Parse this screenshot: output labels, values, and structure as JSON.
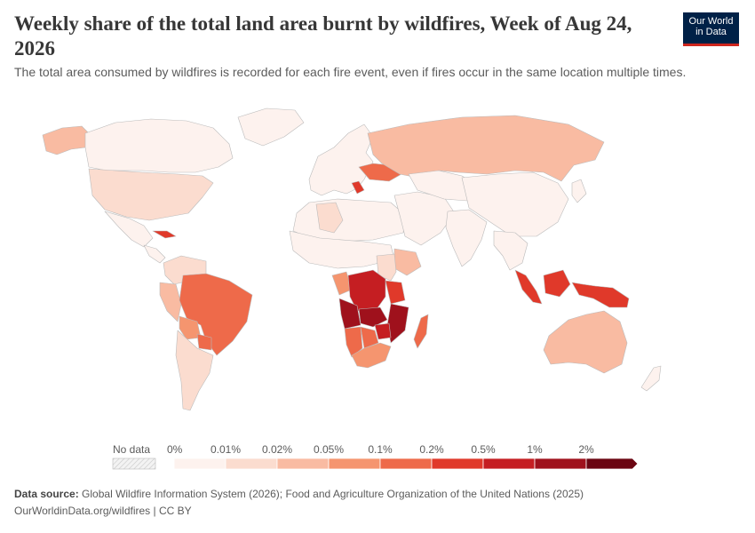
{
  "header": {
    "title": "Weekly share of the total land area burnt by wildfires, Week of Aug 24, 2026",
    "subtitle": "The total area consumed by wildfires is recorded for each fire event, even if fires occur in the same location multiple times."
  },
  "logo": {
    "line1": "Our World",
    "line2": "in Data"
  },
  "legend": {
    "no_data_label": "No data",
    "bins": [
      {
        "label": "0%",
        "color": "#fdf2ee"
      },
      {
        "label": "0.01%",
        "color": "#fbdccf"
      },
      {
        "label": "0.02%",
        "color": "#f9bba2"
      },
      {
        "label": "0.05%",
        "color": "#f5956f"
      },
      {
        "label": "0.1%",
        "color": "#ee6a4a"
      },
      {
        "label": "0.2%",
        "color": "#e0392a"
      },
      {
        "label": "0.5%",
        "color": "#c51e22"
      },
      {
        "label": "1%",
        "color": "#9f111c"
      },
      {
        "label": "2%",
        "color": "#6b0512"
      }
    ]
  },
  "map_regions": [
    {
      "name": "alaska",
      "color": "#f9bba2"
    },
    {
      "name": "canada",
      "color": "#fdf2ee"
    },
    {
      "name": "greenland",
      "color": "#fdf2ee"
    },
    {
      "name": "usa",
      "color": "#fbdccf"
    },
    {
      "name": "mexico",
      "color": "#fdf2ee"
    },
    {
      "name": "central-america",
      "color": "#fdf2ee"
    },
    {
      "name": "cuba",
      "color": "#e0392a"
    },
    {
      "name": "colombia-venezuela",
      "color": "#fbdccf"
    },
    {
      "name": "peru",
      "color": "#f9bba2"
    },
    {
      "name": "brazil",
      "color": "#ee6a4a"
    },
    {
      "name": "bolivia",
      "color": "#f5956f"
    },
    {
      "name": "paraguay",
      "color": "#ee6a4a"
    },
    {
      "name": "argentina-chile",
      "color": "#fbdccf"
    },
    {
      "name": "europe",
      "color": "#fdf2ee"
    },
    {
      "name": "ukraine",
      "color": "#ee6a4a"
    },
    {
      "name": "balkans",
      "color": "#e0392a"
    },
    {
      "name": "russia",
      "color": "#f9bba2"
    },
    {
      "name": "north-africa",
      "color": "#fdf2ee"
    },
    {
      "name": "algeria",
      "color": "#fbdccf"
    },
    {
      "name": "sahel",
      "color": "#fdf2ee"
    },
    {
      "name": "east-africa",
      "color": "#fbdccf"
    },
    {
      "name": "ethiopia",
      "color": "#f9bba2"
    },
    {
      "name": "gabon-congo",
      "color": "#f5956f"
    },
    {
      "name": "dr-congo",
      "color": "#c51e22"
    },
    {
      "name": "angola",
      "color": "#9f111c"
    },
    {
      "name": "zambia",
      "color": "#9f111c"
    },
    {
      "name": "tanzania",
      "color": "#e0392a"
    },
    {
      "name": "mozambique",
      "color": "#9f111c"
    },
    {
      "name": "namibia",
      "color": "#ee6a4a"
    },
    {
      "name": "botswana",
      "color": "#ee6a4a"
    },
    {
      "name": "zimbabwe",
      "color": "#c51e22"
    },
    {
      "name": "south-africa",
      "color": "#f5956f"
    },
    {
      "name": "madagascar",
      "color": "#ee6a4a"
    },
    {
      "name": "middle-east",
      "color": "#fdf2ee"
    },
    {
      "name": "central-asia",
      "color": "#fdf2ee"
    },
    {
      "name": "china",
      "color": "#fdf2ee"
    },
    {
      "name": "india",
      "color": "#fdf2ee"
    },
    {
      "name": "southeast-asia",
      "color": "#fdf2ee"
    },
    {
      "name": "sumatra",
      "color": "#e0392a"
    },
    {
      "name": "borneo",
      "color": "#e0392a"
    },
    {
      "name": "sulawesi-papua",
      "color": "#e0392a"
    },
    {
      "name": "japan",
      "color": "#fdf2ee"
    },
    {
      "name": "australia",
      "color": "#f9bba2"
    },
    {
      "name": "new-zealand",
      "color": "#fdf2ee"
    }
  ],
  "footer": {
    "source_label": "Data source:",
    "source_text": "Global Wildfire Information System (2026); Food and Agriculture Organization of the United Nations (2025)",
    "link_text": "OurWorldinData.org/wildfires | CC BY"
  }
}
